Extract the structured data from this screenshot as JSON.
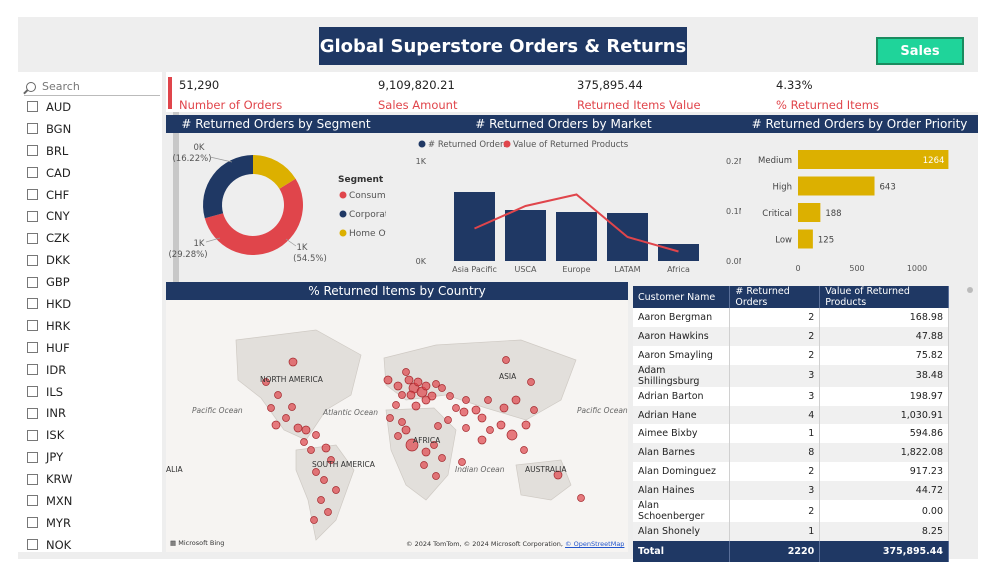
{
  "title": "Global Superstore Orders & Returns",
  "sales_button": "Sales",
  "search": {
    "placeholder": "Search"
  },
  "slicer_items": [
    "AUD",
    "BGN",
    "BRL",
    "CAD",
    "CHF",
    "CNY",
    "CZK",
    "DKK",
    "GBP",
    "HKD",
    "HRK",
    "HUF",
    "IDR",
    "ILS",
    "INR",
    "ISK",
    "JPY",
    "KRW",
    "MXN",
    "MYR",
    "NOK"
  ],
  "kpis": [
    {
      "value": "51,290",
      "label": "Number of Orders"
    },
    {
      "value": "9,109,820.21",
      "label": "Sales Amount"
    },
    {
      "value": "375,895.44",
      "label": "Returned Items Value"
    },
    {
      "value": "4.33%",
      "label": "% Returned Items"
    }
  ],
  "segment_chart": {
    "title": "# Returned Orders by Segment",
    "legend_title": "Segment",
    "slices": [
      {
        "name": "Consumer",
        "label_value": "1K",
        "label_pct": "(54.5%)",
        "pct": 54.5,
        "color": "#e0454b"
      },
      {
        "name": "Corporate",
        "label_value": "1K",
        "label_pct": "(29.28%)",
        "pct": 29.28,
        "color": "#1f3864"
      },
      {
        "name": "Home Office",
        "label_value": "0K",
        "label_pct": "(16.22%)",
        "pct": 16.22,
        "color": "#dcb000"
      }
    ]
  },
  "chart_data": {
    "type": "bar",
    "title": "# Returned Orders by Market",
    "categories": [
      "Asia Pacific",
      "USCA",
      "Europe",
      "LATAM",
      "Africa"
    ],
    "series": [
      {
        "name": "# Returned Orders",
        "values": [
          690,
          510,
          490,
          480,
          170
        ],
        "color": "#1f3864"
      },
      {
        "name": "Value of Returned Products",
        "values": [
          0.065,
          0.11,
          0.133,
          0.048,
          0.019
        ],
        "color": "#e0454b"
      }
    ],
    "y_left_ticks": [
      "0K",
      "1K"
    ],
    "y_right_ticks": [
      "0.0M",
      "0.1M",
      "0.2M"
    ],
    "ylim_left": [
      0,
      1000
    ],
    "ylim_right": [
      0,
      0.2
    ]
  },
  "priority_chart": {
    "title": "# Returned Orders by Order Priority",
    "categories": [
      "Medium",
      "High",
      "Critical",
      "Low"
    ],
    "values": [
      1264,
      643,
      188,
      125
    ],
    "x_ticks": [
      "0",
      "500",
      "1000"
    ],
    "xlim": [
      0,
      1300
    ],
    "color": "#dcb000"
  },
  "map": {
    "title": "% Returned Items by Country",
    "labels": [
      "NORTH AMERICA",
      "ASIA",
      "Pacific Ocean",
      "Atlantic Ocean",
      "AFRICA",
      "Pacific Ocean",
      "ALIA",
      "SOUTH AMERICA",
      "Indian Ocean",
      "AUSTRALIA"
    ],
    "brand": "Microsoft Bing",
    "attribution": "© 2024 TomTom, © 2024 Microsoft Corporation,",
    "attribution_link": "© OpenStreetMap"
  },
  "table": {
    "headers": [
      "Customer Name",
      "# Returned Orders",
      "Value of Returned Products"
    ],
    "rows": [
      [
        "Aaron Bergman",
        "2",
        "168.98"
      ],
      [
        "Aaron Hawkins",
        "2",
        "47.88"
      ],
      [
        "Aaron Smayling",
        "2",
        "75.82"
      ],
      [
        "Adam Shillingsburg",
        "3",
        "38.48"
      ],
      [
        "Adrian Barton",
        "3",
        "198.97"
      ],
      [
        "Adrian Hane",
        "4",
        "1,030.91"
      ],
      [
        "Aimee Bixby",
        "1",
        "594.86"
      ],
      [
        "Alan Barnes",
        "8",
        "1,822.08"
      ],
      [
        "Alan Dominguez",
        "2",
        "917.23"
      ],
      [
        "Alan Haines",
        "3",
        "44.72"
      ],
      [
        "Alan Schoenberger",
        "2",
        "0.00"
      ],
      [
        "Alan Shonely",
        "1",
        "8.25"
      ]
    ],
    "total": [
      "Total",
      "2220",
      "375,895.44"
    ]
  }
}
